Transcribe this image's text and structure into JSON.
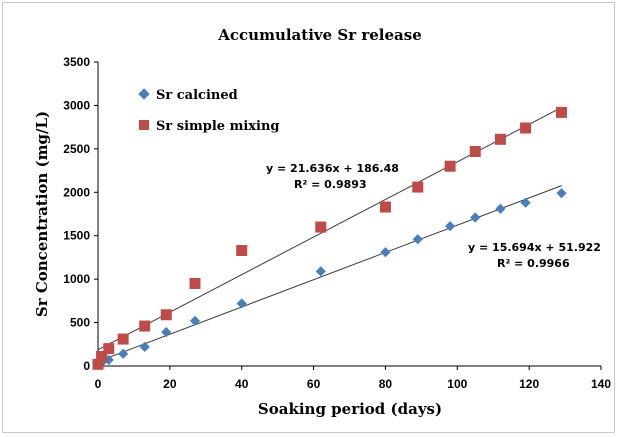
{
  "chart_data": {
    "type": "scatter",
    "title": "Accumulative Sr release",
    "xlabel": "Soaking period (days)",
    "ylabel": "Sr Concentration (mg/L)",
    "xlim": [
      0,
      140
    ],
    "ylim": [
      0,
      3500
    ],
    "x_ticks": [
      "0",
      "20",
      "40",
      "60",
      "80",
      "100",
      "120",
      "140"
    ],
    "y_ticks": [
      "0",
      "500",
      "1000",
      "1500",
      "2000",
      "2500",
      "3000",
      "3500"
    ],
    "grid": false,
    "legend_position": "top-left",
    "series": [
      {
        "name": "Sr calcined",
        "marker": "diamond",
        "color": "#4a7ebb",
        "x": [
          0,
          1,
          3,
          7,
          13,
          19,
          27,
          40,
          62,
          80,
          89,
          98,
          105,
          112,
          119,
          129
        ],
        "y": [
          10,
          40,
          70,
          140,
          220,
          390,
          520,
          720,
          1090,
          1310,
          1460,
          1610,
          1710,
          1810,
          1880,
          1990
        ],
        "trendline": {
          "slope": 15.694,
          "intercept": 51.922,
          "x_range": [
            0,
            129
          ]
        },
        "equation": "y = 15.694x + 51.922",
        "r_squared": "R² = 0.9966"
      },
      {
        "name": "Sr simple mixing",
        "marker": "square",
        "color": "#be4b48",
        "x": [
          0,
          1,
          3,
          7,
          13,
          19,
          27,
          40,
          62,
          80,
          89,
          98,
          105,
          112,
          119,
          129
        ],
        "y": [
          20,
          110,
          200,
          310,
          460,
          590,
          950,
          1330,
          1600,
          1830,
          2060,
          2300,
          2470,
          2610,
          2740,
          2920
        ],
        "trendline": {
          "slope": 21.636,
          "intercept": 186.48,
          "x_range": [
            0,
            129
          ]
        },
        "equation": "y = 21.636x + 186.48",
        "r_squared": "R² = 0.9893"
      }
    ]
  }
}
